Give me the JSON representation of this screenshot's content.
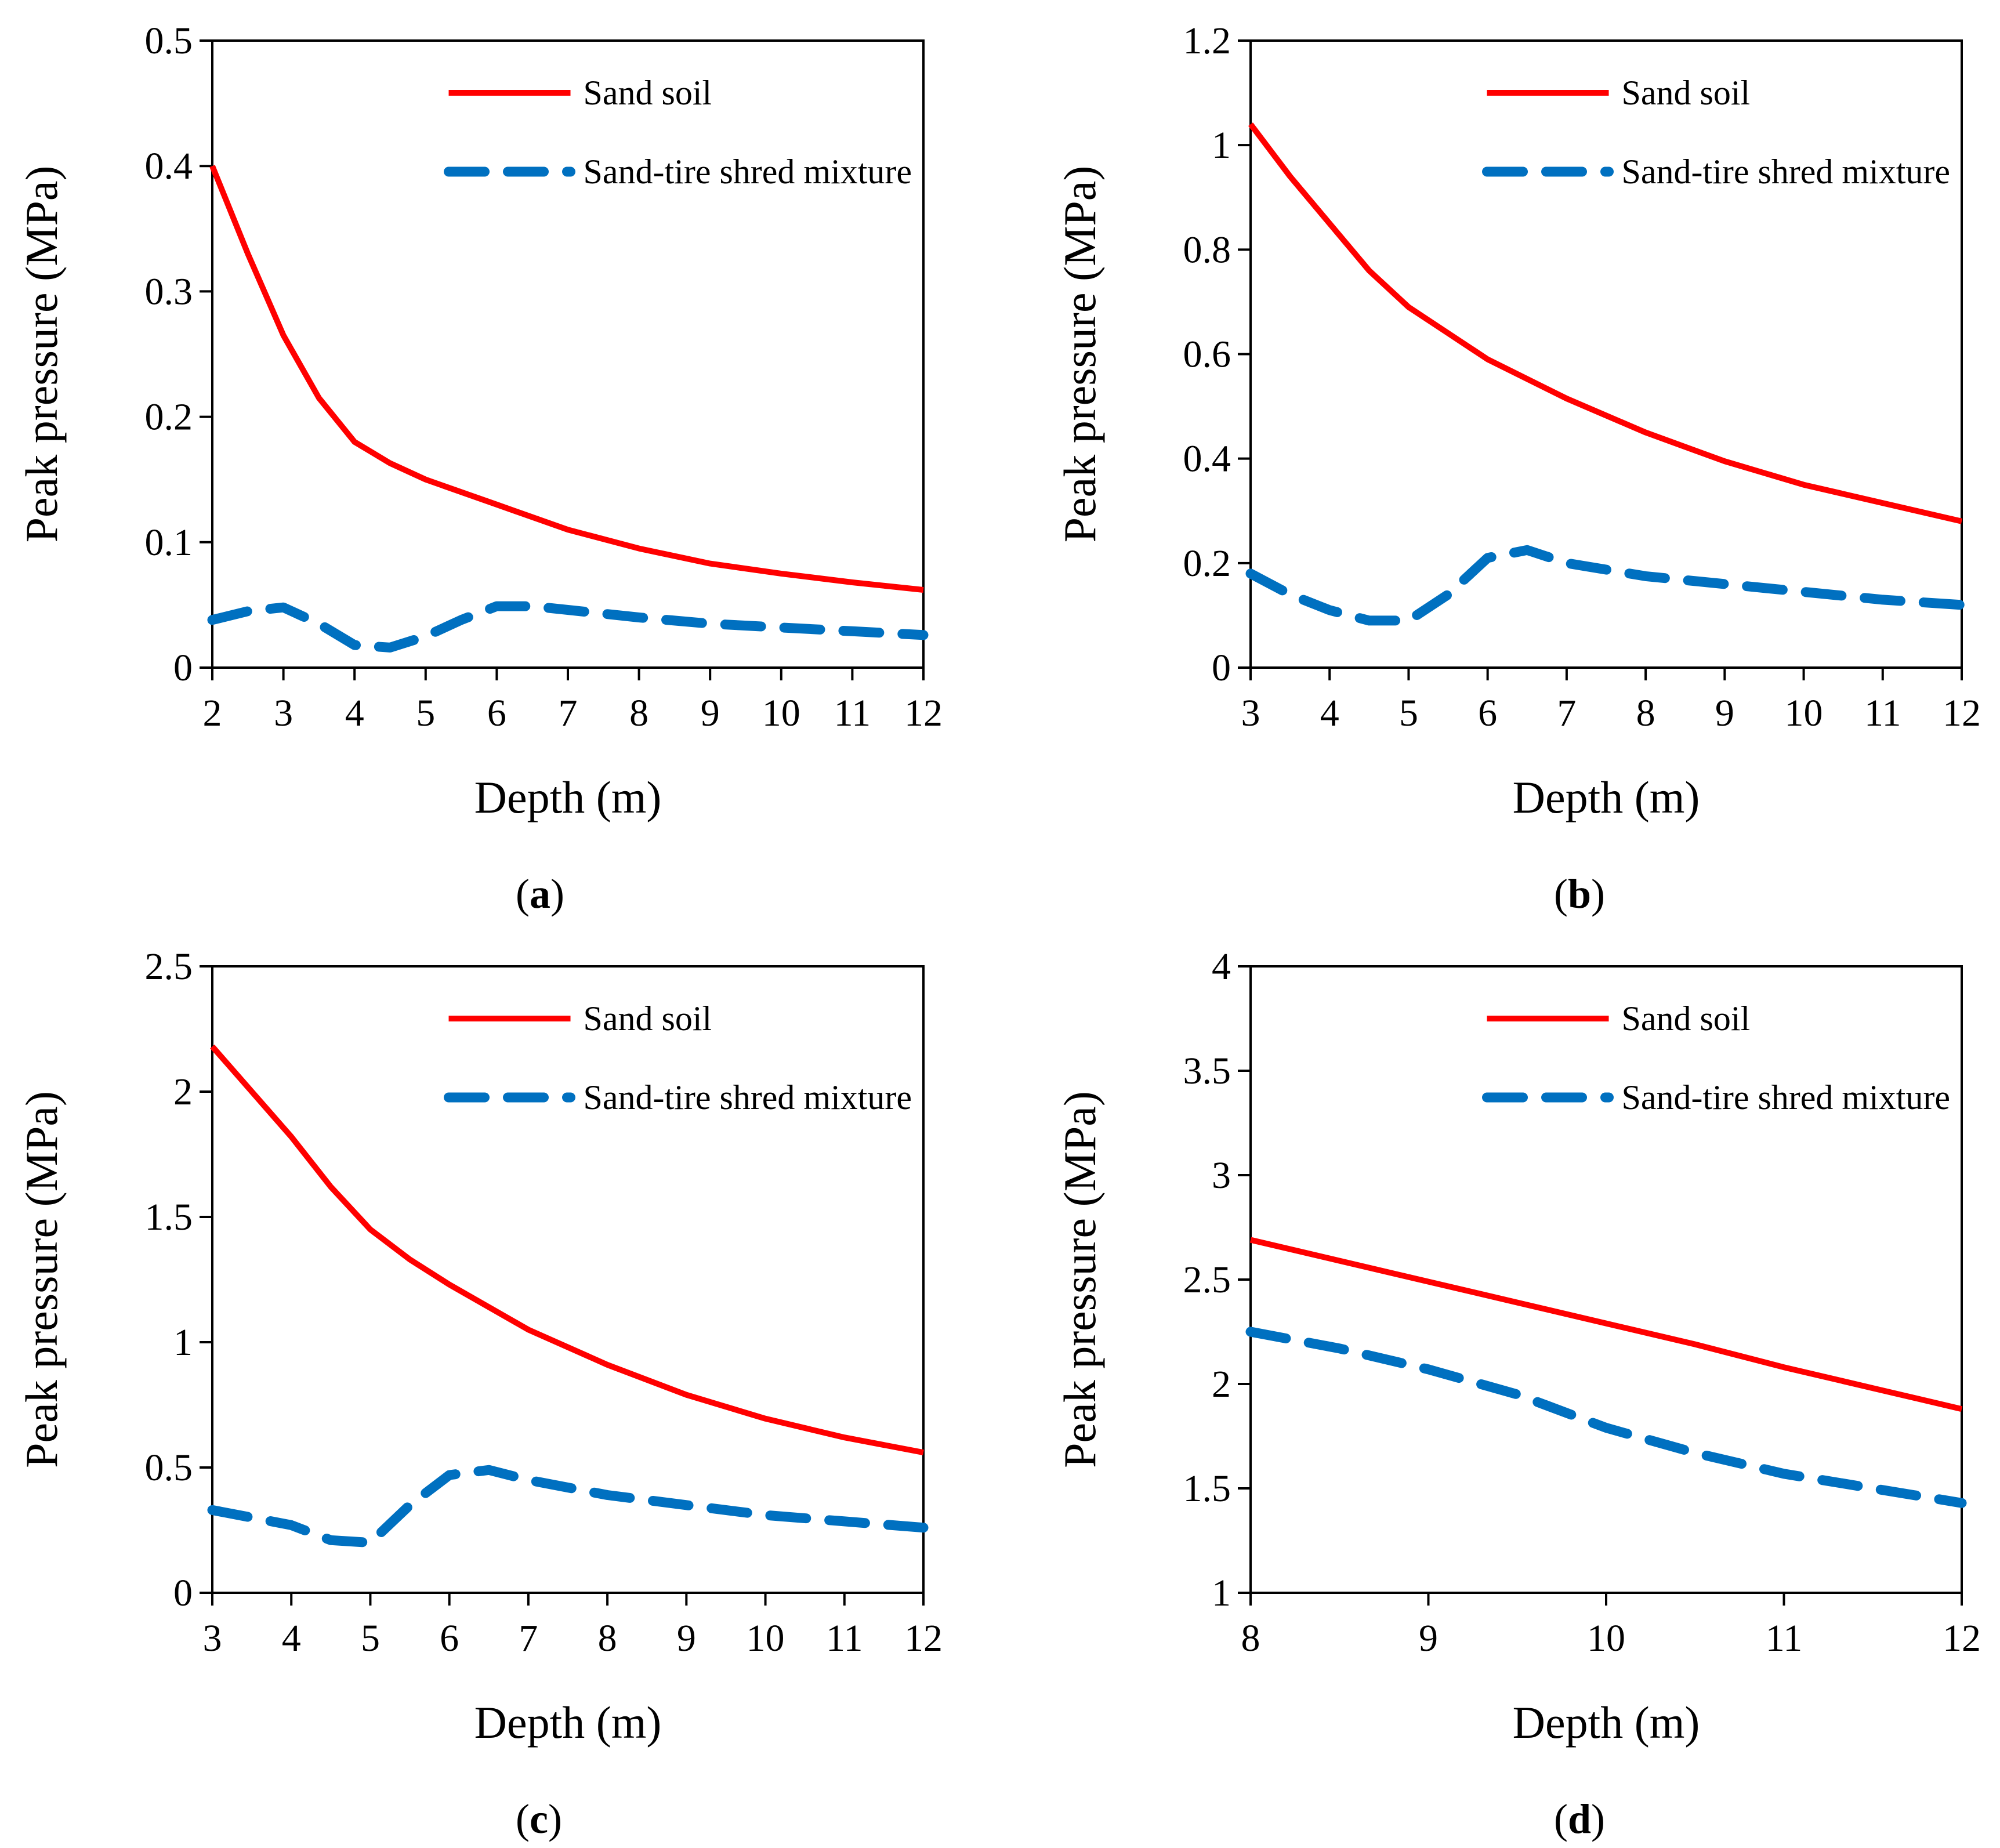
{
  "colors": {
    "sand_soil": "#ff0000",
    "mixture": "#0070c0",
    "axis": "#000000"
  },
  "chart_data": [
    {
      "panel": "a",
      "caption_letter": "a",
      "type": "line",
      "xlabel": "Depth (m)",
      "ylabel": "Peak pressure (MPa)",
      "xlim": [
        2,
        12
      ],
      "ylim": [
        0,
        0.5
      ],
      "xticks": [
        "2",
        "3",
        "4",
        "5",
        "6",
        "7",
        "8",
        "9",
        "10",
        "11",
        "12"
      ],
      "yticks": [
        "0",
        "0.1",
        "0.2",
        "0.3",
        "0.4",
        "0.5"
      ],
      "legend": [
        "Sand soil",
        "Sand-tire shred mixture"
      ],
      "legend_position": "top-right",
      "series": [
        {
          "name": "Sand soil",
          "style": "solid",
          "x": [
            2,
            2.5,
            3,
            3.5,
            4,
            4.5,
            5,
            6,
            7,
            8,
            9,
            10,
            11,
            12
          ],
          "y": [
            0.4,
            0.33,
            0.265,
            0.215,
            0.18,
            0.163,
            0.15,
            0.13,
            0.11,
            0.095,
            0.083,
            0.075,
            0.068,
            0.062
          ]
        },
        {
          "name": "Sand-tire shred mixture",
          "style": "dashed",
          "x": [
            2,
            2.5,
            3,
            3.5,
            4,
            4.5,
            5,
            5.5,
            6,
            6.5,
            7,
            8,
            9,
            10,
            11,
            12
          ],
          "y": [
            0.038,
            0.045,
            0.048,
            0.035,
            0.018,
            0.016,
            0.025,
            0.038,
            0.049,
            0.049,
            0.046,
            0.04,
            0.035,
            0.032,
            0.029,
            0.026
          ]
        }
      ]
    },
    {
      "panel": "b",
      "caption_letter": "b",
      "type": "line",
      "xlabel": "Depth (m)",
      "ylabel": "Peak pressure (MPa)",
      "xlim": [
        3,
        12
      ],
      "ylim": [
        0,
        1.2
      ],
      "xticks": [
        "3",
        "4",
        "5",
        "6",
        "7",
        "8",
        "9",
        "10",
        "11",
        "12"
      ],
      "yticks": [
        "0",
        "0.2",
        "0.4",
        "0.6",
        "0.8",
        "1",
        "1.2"
      ],
      "legend": [
        "Sand soil",
        "Sand-tire shred mixture"
      ],
      "legend_position": "top-right",
      "series": [
        {
          "name": "Sand soil",
          "style": "solid",
          "x": [
            3,
            3.5,
            4,
            4.5,
            5,
            5.5,
            6,
            7,
            8,
            9,
            10,
            11,
            12
          ],
          "y": [
            1.04,
            0.94,
            0.85,
            0.76,
            0.69,
            0.64,
            0.59,
            0.515,
            0.45,
            0.395,
            0.35,
            0.315,
            0.28
          ]
        },
        {
          "name": "Sand-tire shred mixture",
          "style": "dashed",
          "x": [
            3,
            3.5,
            4,
            4.5,
            5,
            5.5,
            6,
            6.5,
            7,
            8,
            9,
            10,
            11,
            12
          ],
          "y": [
            0.18,
            0.14,
            0.11,
            0.09,
            0.09,
            0.14,
            0.21,
            0.225,
            0.2,
            0.175,
            0.16,
            0.145,
            0.13,
            0.12
          ]
        }
      ]
    },
    {
      "panel": "c",
      "caption_letter": "c",
      "type": "line",
      "xlabel": "Depth (m)",
      "ylabel": "Peak pressure (MPa)",
      "xlim": [
        3,
        12
      ],
      "ylim": [
        0,
        2.5
      ],
      "xticks": [
        "3",
        "4",
        "5",
        "6",
        "7",
        "8",
        "9",
        "10",
        "11",
        "12"
      ],
      "yticks": [
        "0",
        "0.5",
        "1",
        "1.5",
        "2",
        "2.5"
      ],
      "legend": [
        "Sand soil",
        "Sand-tire shred mixture"
      ],
      "legend_position": "top-right",
      "series": [
        {
          "name": "Sand soil",
          "style": "solid",
          "x": [
            3,
            3.5,
            4,
            4.5,
            5,
            5.5,
            6,
            7,
            8,
            9,
            10,
            11,
            12
          ],
          "y": [
            2.18,
            2.0,
            1.82,
            1.62,
            1.45,
            1.33,
            1.23,
            1.05,
            0.91,
            0.79,
            0.695,
            0.62,
            0.56
          ]
        },
        {
          "name": "Sand-tire shred mixture",
          "style": "dashed",
          "x": [
            3,
            3.5,
            4,
            4.5,
            5,
            5.5,
            6,
            6.5,
            7,
            8,
            9,
            10,
            11,
            12
          ],
          "y": [
            0.33,
            0.3,
            0.27,
            0.21,
            0.2,
            0.35,
            0.47,
            0.49,
            0.45,
            0.39,
            0.35,
            0.31,
            0.285,
            0.26
          ]
        }
      ]
    },
    {
      "panel": "d",
      "caption_letter": "d",
      "type": "line",
      "xlabel": "Depth (m)",
      "ylabel": "Peak pressure (MPa)",
      "xlim": [
        8,
        12
      ],
      "ylim": [
        1,
        4
      ],
      "xticks": [
        "8",
        "9",
        "10",
        "11",
        "12"
      ],
      "yticks": [
        "1",
        "1.5",
        "2",
        "2.5",
        "3",
        "3.5",
        "4"
      ],
      "legend": [
        "Sand soil",
        "Sand-tire shred mixture"
      ],
      "legend_position": "top-right",
      "series": [
        {
          "name": "Sand soil",
          "style": "solid",
          "x": [
            8,
            8.5,
            9,
            9.5,
            10,
            10.5,
            11,
            11.5,
            12
          ],
          "y": [
            2.69,
            2.59,
            2.49,
            2.39,
            2.29,
            2.19,
            2.08,
            1.98,
            1.88
          ]
        },
        {
          "name": "Sand-tire shred mixture",
          "style": "dashed",
          "x": [
            8,
            8.5,
            9,
            9.5,
            10,
            10.5,
            11,
            11.5,
            12
          ],
          "y": [
            2.25,
            2.17,
            2.07,
            1.95,
            1.79,
            1.67,
            1.57,
            1.5,
            1.43
          ]
        }
      ]
    }
  ]
}
